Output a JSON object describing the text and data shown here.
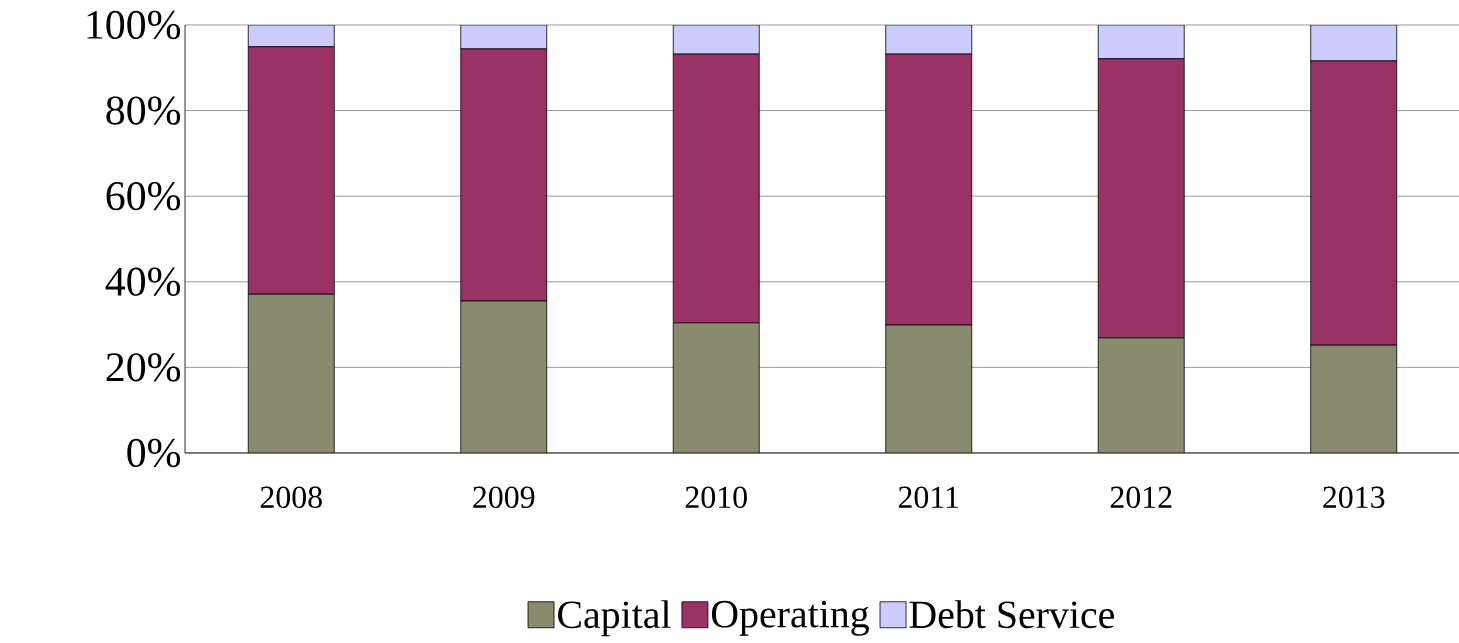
{
  "chart_data": {
    "type": "bar",
    "stacked": true,
    "categories": [
      "2008",
      "2009",
      "2010",
      "2011",
      "2012",
      "2013"
    ],
    "series": [
      {
        "name": "Capital",
        "color": "#8a8a6e",
        "values": [
          37.1,
          35.5,
          30.4,
          29.9,
          26.9,
          25.2
        ]
      },
      {
        "name": "Operating",
        "color": "#993366",
        "values": [
          57.8,
          58.9,
          62.8,
          63.3,
          65.2,
          66.4
        ]
      },
      {
        "name": "Debt Service",
        "color": "#ccccff",
        "values": [
          5.1,
          5.6,
          6.8,
          6.8,
          7.9,
          8.4
        ]
      }
    ],
    "ylim": [
      0,
      100
    ],
    "yticks": [
      {
        "value": 0,
        "label": "0%"
      },
      {
        "value": 20,
        "label": "20%"
      },
      {
        "value": 40,
        "label": "40%"
      },
      {
        "value": 60,
        "label": "60%"
      },
      {
        "value": 80,
        "label": "80%"
      },
      {
        "value": 100,
        "label": "100%"
      }
    ],
    "grid": "y",
    "legend": "bottom"
  }
}
